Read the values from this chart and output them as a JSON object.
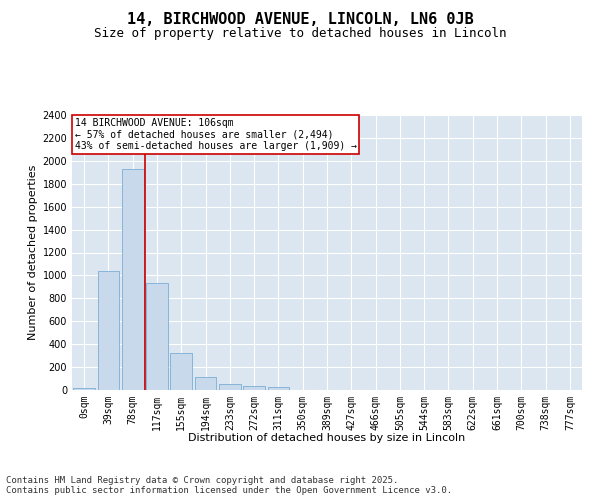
{
  "title_line1": "14, BIRCHWOOD AVENUE, LINCOLN, LN6 0JB",
  "title_line2": "Size of property relative to detached houses in Lincoln",
  "xlabel": "Distribution of detached houses by size in Lincoln",
  "ylabel": "Number of detached properties",
  "bar_color": "#c9d9ec",
  "bar_edge_color": "#7aadd4",
  "background_color": "#dce6f0",
  "grid_color": "#ffffff",
  "categories": [
    "0sqm",
    "39sqm",
    "78sqm",
    "117sqm",
    "155sqm",
    "194sqm",
    "233sqm",
    "272sqm",
    "311sqm",
    "350sqm",
    "389sqm",
    "427sqm",
    "466sqm",
    "505sqm",
    "544sqm",
    "583sqm",
    "622sqm",
    "661sqm",
    "700sqm",
    "738sqm",
    "777sqm"
  ],
  "values": [
    15,
    1035,
    1930,
    930,
    325,
    110,
    55,
    35,
    25,
    0,
    0,
    0,
    0,
    0,
    0,
    0,
    0,
    0,
    0,
    0,
    0
  ],
  "ylim": [
    0,
    2400
  ],
  "yticks": [
    0,
    200,
    400,
    600,
    800,
    1000,
    1200,
    1400,
    1600,
    1800,
    2000,
    2200,
    2400
  ],
  "property_bin_index": 2,
  "vline_x_offset": 0.5,
  "vline_color": "#cc0000",
  "annotation_box_color": "#cc0000",
  "annotation_text_line1": "14 BIRCHWOOD AVENUE: 106sqm",
  "annotation_text_line2": "← 57% of detached houses are smaller (2,494)",
  "annotation_text_line3": "43% of semi-detached houses are larger (1,909) →",
  "footer_line1": "Contains HM Land Registry data © Crown copyright and database right 2025.",
  "footer_line2": "Contains public sector information licensed under the Open Government Licence v3.0.",
  "title_fontsize": 11,
  "subtitle_fontsize": 9,
  "axis_label_fontsize": 8,
  "tick_fontsize": 7,
  "annotation_fontsize": 7,
  "footer_fontsize": 6.5
}
